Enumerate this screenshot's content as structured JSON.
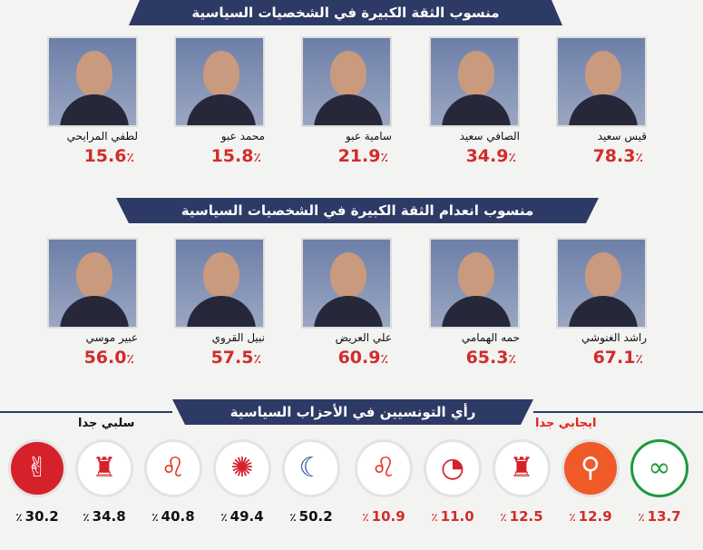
{
  "banners": {
    "trust": "منسوب الثقة الكبيرة في الشخصيات السياسية",
    "distrust": "منسوب انعدام الثقة الكبيرة في الشخصيات السياسية",
    "parties": "رأي التونسيين في الأحزاب السياسية"
  },
  "labels": {
    "positive": "ايجابي جدا",
    "negative": "سلبي جدا",
    "percent_sign": "٪"
  },
  "colors": {
    "banner": "#2d3a66",
    "value_red": "#d22c2c",
    "positive_label": "#e2231a",
    "negative_label": "#111111"
  },
  "chart_data": [
    {
      "type": "bar",
      "title": "منسوب الثقة الكبيرة في الشخصيات السياسية",
      "categories": [
        "قيس سعيد",
        "الصافي سعيد",
        "سامية عبو",
        "محمد عبو",
        "لطفي المرايحي"
      ],
      "values": [
        78.3,
        34.9,
        21.9,
        15.8,
        15.6
      ],
      "value_labels": [
        "78.3",
        "34.9",
        "21.9",
        "15.8",
        "15.6"
      ]
    },
    {
      "type": "bar",
      "title": "منسوب انعدام الثقة الكبيرة في الشخصيات السياسية",
      "categories": [
        "راشد الغنوشي",
        "حمه الهمامي",
        "علي العريض",
        "نبيل القروي",
        "عبير موسي"
      ],
      "values": [
        67.1,
        65.3,
        60.9,
        57.5,
        56.0
      ],
      "value_labels": [
        "67.1",
        "65.3",
        "60.9",
        "57.5",
        "56.0"
      ]
    },
    {
      "type": "bar",
      "title": "رأي التونسيين في الأحزاب السياسية",
      "series": [
        {
          "name": "ايجابي جدا",
          "categories": [
            "ائتلاف الكرامة",
            "التيار الديمقراطي",
            "الحزب الدستوري الحر",
            "حركة الشعب",
            "قلب تونس"
          ],
          "values": [
            13.7,
            12.9,
            12.5,
            11.0,
            10.9
          ],
          "value_labels": [
            "13.7",
            "12.9",
            "12.5",
            "11.0",
            "10.9"
          ]
        },
        {
          "name": "سلبي جدا",
          "categories": [
            "حركة النهضة",
            "حركة نداء تونس",
            "قلب تونس",
            "الحزب الدستوري الحر",
            "تحيا تونس"
          ],
          "values": [
            50.2,
            49.4,
            40.8,
            34.8,
            30.2
          ],
          "value_labels": [
            "50.2",
            "49.4",
            "40.8",
            "34.8",
            "30.2"
          ]
        }
      ]
    }
  ],
  "party_logos": {
    "positive": [
      {
        "text": "ائتلاف الكرامة",
        "bg": "#ffffff",
        "fg": "#1d9a3c",
        "icon": "three-rings-icon"
      },
      {
        "text": "التيار الديمقراطي",
        "bg": "#f05a28",
        "fg": "#ffffff",
        "icon": "bicycle-icon"
      },
      {
        "text": "الحزب الدستوري الحر",
        "bg": "#ffffff",
        "fg": "#d6202a",
        "icon": "torch-figure-icon"
      },
      {
        "text": "حركة الشعب",
        "bg": "#ffffff",
        "fg": "#d6202a",
        "icon": "swirl-icon"
      },
      {
        "text": "قلب تونس",
        "bg": "#ffffff",
        "fg": "#e63324",
        "icon": "lion-icon"
      }
    ],
    "negative": [
      {
        "text": "حركة النهضة",
        "bg": "#ffffff",
        "fg": "#1e4e9c",
        "icon": "tunisia-map-icon"
      },
      {
        "text": "حركة نداء تونس",
        "bg": "#ffffff",
        "fg": "#d6202a",
        "icon": "palm-tree-icon"
      },
      {
        "text": "قلب تونس",
        "bg": "#ffffff",
        "fg": "#e63324",
        "icon": "lion-icon"
      },
      {
        "text": "الحزب الدستوري الحر",
        "bg": "#ffffff",
        "fg": "#d6202a",
        "icon": "torch-figure-icon"
      },
      {
        "text": "تحيا تونس",
        "bg": "#d6202a",
        "fg": "#ffffff",
        "icon": "victory-hand-icon"
      }
    ]
  }
}
